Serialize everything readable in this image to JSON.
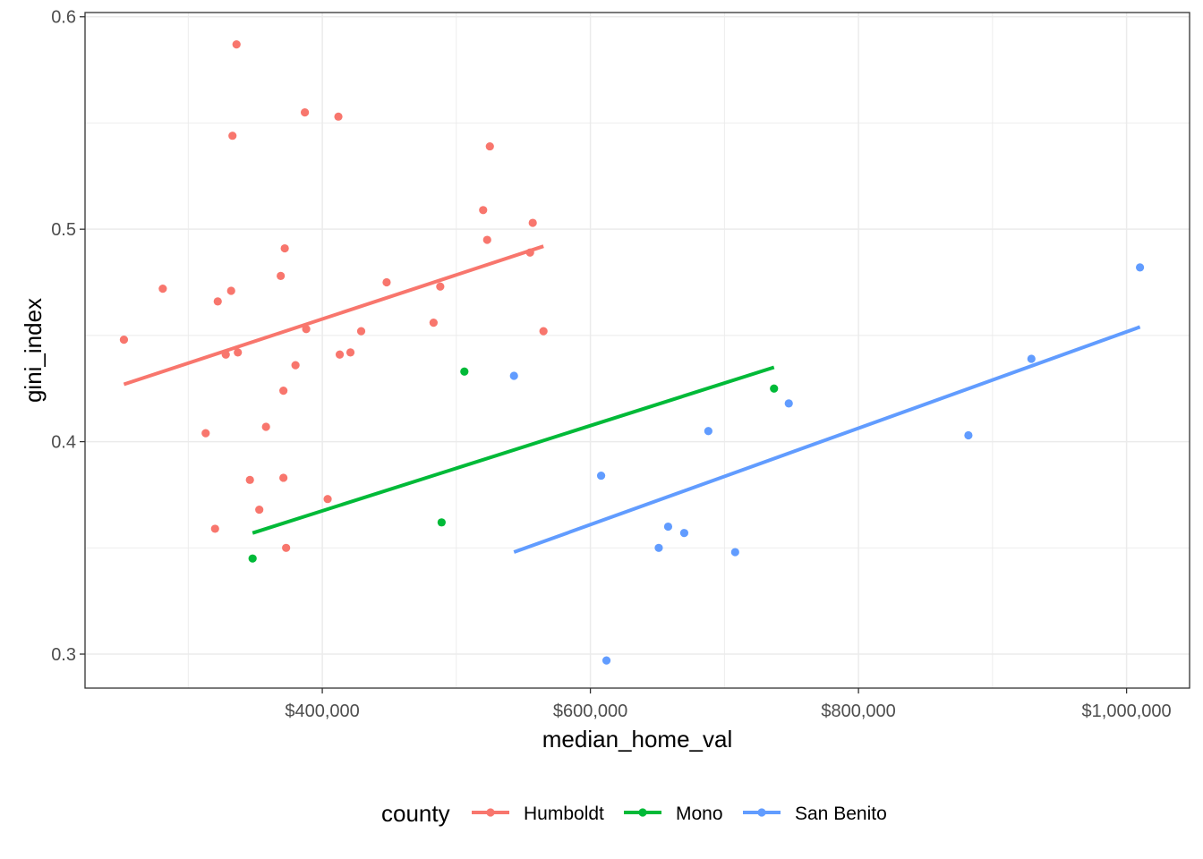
{
  "chart_data": {
    "type": "scatter",
    "title": "",
    "xlabel": "median_home_val",
    "ylabel": "gini_index",
    "xlim": [
      223000,
      1047000
    ],
    "ylim": [
      0.284,
      0.602
    ],
    "x_ticks": [
      400000,
      600000,
      800000,
      1000000
    ],
    "x_tick_labels": [
      "$400,000",
      "$600,000",
      "$800,000",
      "$1,000,000"
    ],
    "y_ticks": [
      0.3,
      0.4,
      0.5,
      0.6
    ],
    "y_tick_labels": [
      "0.3",
      "0.4",
      "0.5",
      "0.6"
    ],
    "grid": true,
    "legend": {
      "title": "county",
      "position": "bottom"
    },
    "series": [
      {
        "name": "Humboldt",
        "color": "#F8766D",
        "points": [
          [
            336000,
            0.587
          ],
          [
            387000,
            0.555
          ],
          [
            412000,
            0.553
          ],
          [
            333000,
            0.544
          ],
          [
            525000,
            0.539
          ],
          [
            520000,
            0.509
          ],
          [
            557000,
            0.503
          ],
          [
            523000,
            0.495
          ],
          [
            372000,
            0.491
          ],
          [
            555000,
            0.489
          ],
          [
            369000,
            0.478
          ],
          [
            448000,
            0.475
          ],
          [
            488000,
            0.473
          ],
          [
            281000,
            0.472
          ],
          [
            332000,
            0.471
          ],
          [
            322000,
            0.466
          ],
          [
            483000,
            0.456
          ],
          [
            388000,
            0.453
          ],
          [
            565000,
            0.452
          ],
          [
            429000,
            0.452
          ],
          [
            337000,
            0.442
          ],
          [
            328000,
            0.441
          ],
          [
            421000,
            0.442
          ],
          [
            413000,
            0.441
          ],
          [
            380000,
            0.436
          ],
          [
            371000,
            0.424
          ],
          [
            252000,
            0.448
          ],
          [
            358000,
            0.407
          ],
          [
            313000,
            0.404
          ],
          [
            346000,
            0.382
          ],
          [
            371000,
            0.383
          ],
          [
            404000,
            0.373
          ],
          [
            353000,
            0.368
          ],
          [
            320000,
            0.359
          ],
          [
            373000,
            0.35
          ]
        ],
        "fit": {
          "x": [
            252000,
            565000
          ],
          "y": [
            0.427,
            0.492
          ]
        }
      },
      {
        "name": "Mono",
        "color": "#00BA38",
        "points": [
          [
            506000,
            0.433
          ],
          [
            737000,
            0.425
          ],
          [
            489000,
            0.362
          ],
          [
            348000,
            0.345
          ]
        ],
        "fit": {
          "x": [
            348000,
            737000
          ],
          "y": [
            0.357,
            0.435
          ]
        }
      },
      {
        "name": "San Benito",
        "color": "#619CFF",
        "points": [
          [
            1010000,
            0.482
          ],
          [
            929000,
            0.439
          ],
          [
            543000,
            0.431
          ],
          [
            748000,
            0.418
          ],
          [
            688000,
            0.405
          ],
          [
            882000,
            0.403
          ],
          [
            608000,
            0.384
          ],
          [
            658000,
            0.36
          ],
          [
            670000,
            0.357
          ],
          [
            651000,
            0.35
          ],
          [
            708000,
            0.348
          ],
          [
            612000,
            0.297
          ]
        ],
        "fit": {
          "x": [
            543000,
            1010000
          ],
          "y": [
            0.348,
            0.454
          ]
        }
      }
    ]
  }
}
